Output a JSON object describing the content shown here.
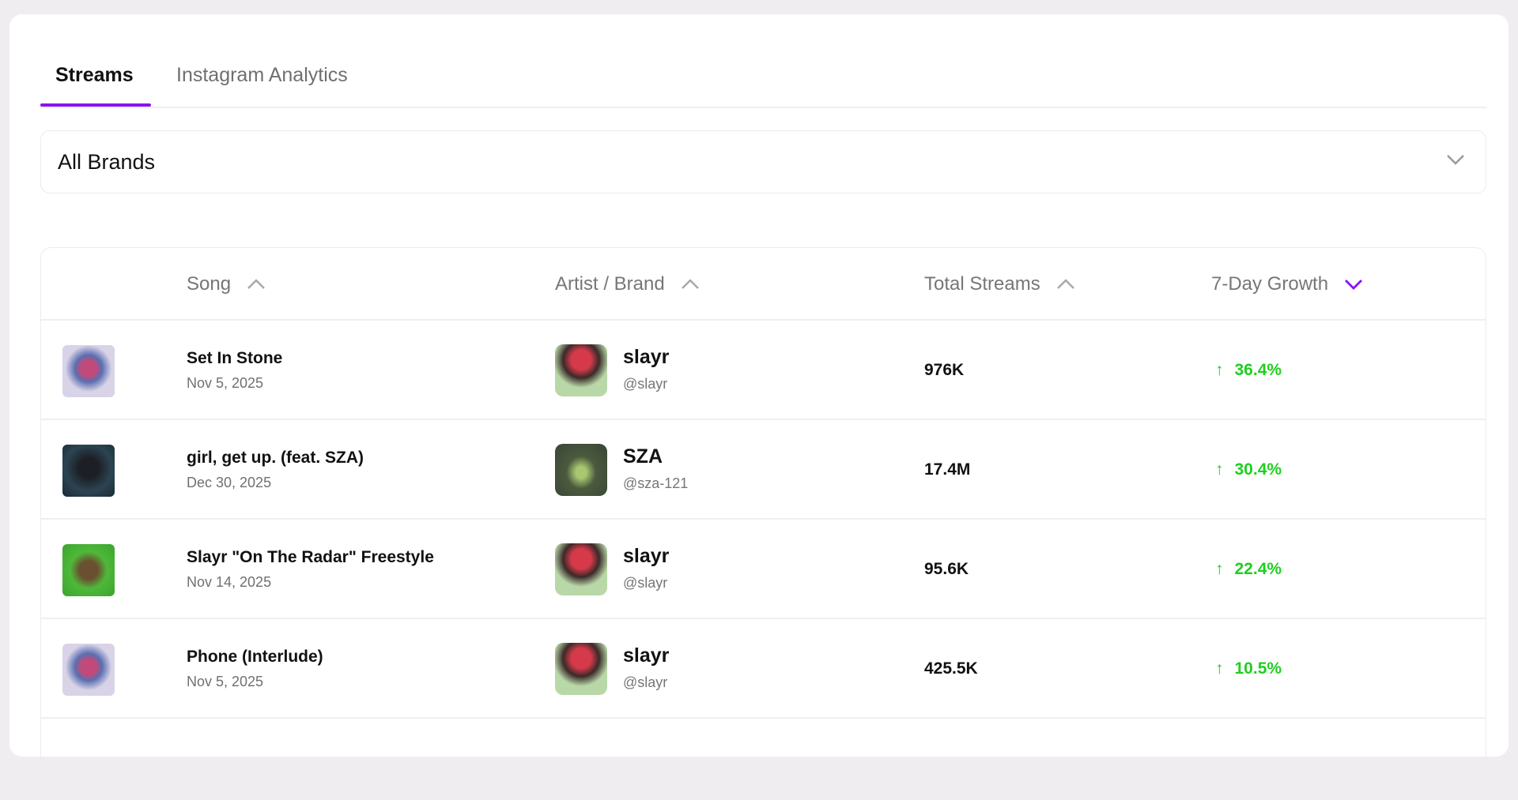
{
  "tabs": [
    {
      "label": "Streams",
      "active": true
    },
    {
      "label": "Instagram Analytics",
      "active": false
    }
  ],
  "filter": {
    "selected": "All Brands",
    "icon": "chevron-down-icon"
  },
  "table": {
    "headers": [
      {
        "label": "Song",
        "sort": "asc"
      },
      {
        "label": "Artist / Brand",
        "sort": "asc"
      },
      {
        "label": "Total Streams",
        "sort": "asc"
      },
      {
        "label": "7-Day Growth",
        "sort": "desc"
      }
    ],
    "rows": [
      {
        "song": "Set In Stone",
        "date": "Nov 5, 2025",
        "artist": "slayr",
        "handle": "@slayr",
        "streams": "976K",
        "growth": "36.4%",
        "arrow": "↑"
      },
      {
        "song": "girl, get up. (feat. SZA)",
        "date": "Dec 30, 2025",
        "artist": "SZA",
        "handle": "@sza-121",
        "streams": "17.4M",
        "growth": "30.4%",
        "arrow": "↑"
      },
      {
        "song": "Slayr \"On The Radar\" Freestyle",
        "date": "Nov 14, 2025",
        "artist": "slayr",
        "handle": "@slayr",
        "streams": "95.6K",
        "growth": "22.4%",
        "arrow": "↑"
      },
      {
        "song": "Phone (Interlude)",
        "date": "Nov 5, 2025",
        "artist": "slayr",
        "handle": "@slayr",
        "streams": "425.5K",
        "growth": "10.5%",
        "arrow": "↑"
      }
    ]
  },
  "colors": {
    "accent": "#8a12f2",
    "positive": "#1fcf1f"
  }
}
